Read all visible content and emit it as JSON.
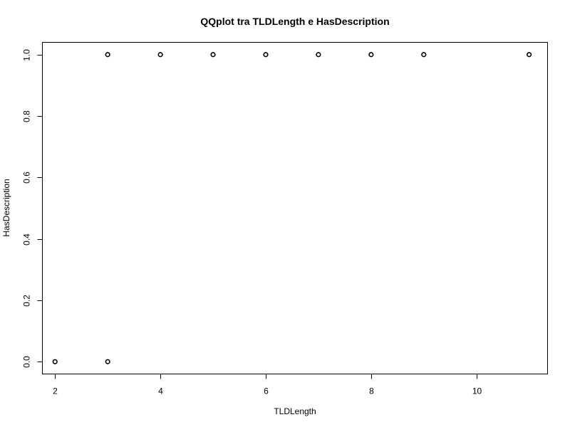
{
  "chart_data": {
    "type": "scatter",
    "title": "QQplot tra TLDLength e HasDescription",
    "xlabel": "TLDLength",
    "ylabel": "HasDescription",
    "xlim": [
      1.76,
      11.35
    ],
    "ylim": [
      -0.04,
      1.04
    ],
    "x_ticks": [
      2,
      4,
      6,
      8,
      10
    ],
    "y_ticks": [
      0.0,
      0.2,
      0.4,
      0.6,
      0.8,
      1.0
    ],
    "x_tick_labels": [
      "2",
      "4",
      "6",
      "8",
      "10"
    ],
    "y_tick_labels": [
      "0.0",
      "0.2",
      "0.4",
      "0.6",
      "0.8",
      "1.0"
    ],
    "grid": false,
    "legend": "none",
    "marker": "open-circle",
    "points": [
      {
        "x": 2,
        "y": 0
      },
      {
        "x": 3,
        "y": 0
      },
      {
        "x": 3,
        "y": 1
      },
      {
        "x": 4,
        "y": 1
      },
      {
        "x": 5,
        "y": 1
      },
      {
        "x": 6,
        "y": 1
      },
      {
        "x": 7,
        "y": 1
      },
      {
        "x": 8,
        "y": 1
      },
      {
        "x": 9,
        "y": 1
      },
      {
        "x": 11,
        "y": 1
      }
    ],
    "colors": {
      "marker": "#000000",
      "axis": "#000000",
      "background": "#ffffff"
    }
  }
}
